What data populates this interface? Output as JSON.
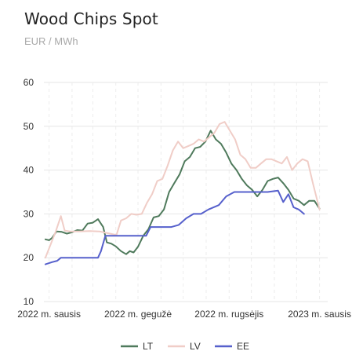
{
  "header": {
    "title": "Wood Chips Spot",
    "unit": "EUR / MWh"
  },
  "chart_data": {
    "type": "line",
    "title": "Wood Chips Spot",
    "ylabel": "EUR / MWh",
    "ylim": [
      10,
      60
    ],
    "yticks": [
      10,
      20,
      30,
      40,
      50,
      60
    ],
    "xlim": [
      "2021-12-25",
      "2023-01-12"
    ],
    "xticks": [
      {
        "date": "2022-01-01",
        "label": "2022 m. sausis"
      },
      {
        "date": "2022-05-01",
        "label": "2022 m. gegužė"
      },
      {
        "date": "2022-09-01",
        "label": "2022 m. rugsėjis"
      },
      {
        "date": "2023-01-01",
        "label": "2023 m. sausis"
      }
    ],
    "grid": true,
    "legend": "bottom",
    "series": [
      {
        "name": "LT",
        "color": "#4f7a5c",
        "points": [
          [
            "2021-12-27",
            24.2
          ],
          [
            "2022-01-01",
            24.0
          ],
          [
            "2022-01-05",
            24.5
          ],
          [
            "2022-01-11",
            26.0
          ],
          [
            "2022-01-18",
            25.9
          ],
          [
            "2022-01-25",
            25.5
          ],
          [
            "2022-02-01",
            25.8
          ],
          [
            "2022-02-08",
            26.3
          ],
          [
            "2022-02-15",
            26.2
          ],
          [
            "2022-02-22",
            27.8
          ],
          [
            "2022-03-01",
            28.0
          ],
          [
            "2022-03-08",
            28.8
          ],
          [
            "2022-03-15",
            27.0
          ],
          [
            "2022-03-20",
            23.5
          ],
          [
            "2022-03-26",
            23.2
          ],
          [
            "2022-04-01",
            22.6
          ],
          [
            "2022-04-08",
            21.5
          ],
          [
            "2022-04-15",
            20.8
          ],
          [
            "2022-04-20",
            21.5
          ],
          [
            "2022-04-25",
            21.2
          ],
          [
            "2022-05-01",
            22.5
          ],
          [
            "2022-05-08",
            25.0
          ],
          [
            "2022-05-15",
            26.5
          ],
          [
            "2022-05-22",
            29.2
          ],
          [
            "2022-05-29",
            29.5
          ],
          [
            "2022-06-05",
            31.0
          ],
          [
            "2022-06-12",
            35.0
          ],
          [
            "2022-06-19",
            37.0
          ],
          [
            "2022-06-26",
            39.0
          ],
          [
            "2022-07-03",
            42.0
          ],
          [
            "2022-07-10",
            43.0
          ],
          [
            "2022-07-17",
            45.0
          ],
          [
            "2022-07-24",
            45.3
          ],
          [
            "2022-07-31",
            46.5
          ],
          [
            "2022-08-07",
            49.0
          ],
          [
            "2022-08-14",
            47.0
          ],
          [
            "2022-08-21",
            46.0
          ],
          [
            "2022-08-28",
            44.0
          ],
          [
            "2022-09-04",
            41.5
          ],
          [
            "2022-09-11",
            40.0
          ],
          [
            "2022-09-18",
            38.0
          ],
          [
            "2022-09-25",
            36.5
          ],
          [
            "2022-10-02",
            35.5
          ],
          [
            "2022-10-09",
            34.0
          ],
          [
            "2022-10-16",
            35.5
          ],
          [
            "2022-10-23",
            37.5
          ],
          [
            "2022-10-30",
            38.0
          ],
          [
            "2022-11-06",
            38.3
          ],
          [
            "2022-11-13",
            37.0
          ],
          [
            "2022-11-20",
            35.5
          ],
          [
            "2022-11-27",
            33.5
          ],
          [
            "2022-12-04",
            33.0
          ],
          [
            "2022-12-11",
            32.0
          ],
          [
            "2022-12-18",
            33.0
          ],
          [
            "2022-12-25",
            33.0
          ],
          [
            "2023-01-01",
            31.2
          ]
        ]
      },
      {
        "name": "LV",
        "color": "#f0cdc7",
        "points": [
          [
            "2021-12-27",
            20.0
          ],
          [
            "2022-01-03",
            23.0
          ],
          [
            "2022-01-10",
            26.0
          ],
          [
            "2022-01-17",
            29.5
          ],
          [
            "2022-01-22",
            26.2
          ],
          [
            "2022-01-29",
            26.0
          ],
          [
            "2022-02-10",
            26.0
          ],
          [
            "2022-02-25",
            26.1
          ],
          [
            "2022-03-10",
            26.0
          ],
          [
            "2022-03-24",
            25.5
          ],
          [
            "2022-04-02",
            25.2
          ],
          [
            "2022-04-08",
            28.5
          ],
          [
            "2022-04-15",
            29.0
          ],
          [
            "2022-04-22",
            30.0
          ],
          [
            "2022-04-29",
            29.8
          ],
          [
            "2022-05-06",
            30.0
          ],
          [
            "2022-05-13",
            32.5
          ],
          [
            "2022-05-20",
            34.5
          ],
          [
            "2022-05-27",
            37.5
          ],
          [
            "2022-06-03",
            38.0
          ],
          [
            "2022-06-10",
            41.0
          ],
          [
            "2022-06-17",
            44.5
          ],
          [
            "2022-06-24",
            46.5
          ],
          [
            "2022-07-01",
            45.0
          ],
          [
            "2022-07-08",
            45.5
          ],
          [
            "2022-07-15",
            46.0
          ],
          [
            "2022-07-22",
            47.0
          ],
          [
            "2022-07-29",
            46.5
          ],
          [
            "2022-08-05",
            47.5
          ],
          [
            "2022-08-12",
            48.5
          ],
          [
            "2022-08-19",
            50.5
          ],
          [
            "2022-08-26",
            51.0
          ],
          [
            "2022-09-02",
            49.0
          ],
          [
            "2022-09-09",
            47.0
          ],
          [
            "2022-09-16",
            43.5
          ],
          [
            "2022-09-23",
            42.5
          ],
          [
            "2022-09-30",
            40.5
          ],
          [
            "2022-10-07",
            40.5
          ],
          [
            "2022-10-14",
            41.5
          ],
          [
            "2022-10-21",
            42.5
          ],
          [
            "2022-10-28",
            42.5
          ],
          [
            "2022-11-04",
            42.0
          ],
          [
            "2022-11-11",
            41.5
          ],
          [
            "2022-11-18",
            43.0
          ],
          [
            "2022-11-25",
            40.0
          ],
          [
            "2022-12-02",
            41.5
          ],
          [
            "2022-12-09",
            42.5
          ],
          [
            "2022-12-16",
            42.0
          ],
          [
            "2022-12-23",
            37.0
          ],
          [
            "2023-01-01",
            31.0
          ]
        ]
      },
      {
        "name": "EE",
        "color": "#5660cc",
        "points": [
          [
            "2021-12-27",
            18.5
          ],
          [
            "2022-01-05",
            19.0
          ],
          [
            "2022-01-12",
            19.3
          ],
          [
            "2022-01-17",
            20.0
          ],
          [
            "2022-02-01",
            20.0
          ],
          [
            "2022-02-15",
            20.0
          ],
          [
            "2022-03-01",
            20.0
          ],
          [
            "2022-03-08",
            20.0
          ],
          [
            "2022-03-12",
            21.5
          ],
          [
            "2022-03-18",
            25.0
          ],
          [
            "2022-03-25",
            25.0
          ],
          [
            "2022-04-01",
            25.0
          ],
          [
            "2022-04-15",
            25.0
          ],
          [
            "2022-05-01",
            25.0
          ],
          [
            "2022-05-12",
            25.0
          ],
          [
            "2022-05-18",
            27.0
          ],
          [
            "2022-06-01",
            27.0
          ],
          [
            "2022-06-15",
            27.0
          ],
          [
            "2022-06-25",
            27.5
          ],
          [
            "2022-07-05",
            29.0
          ],
          [
            "2022-07-15",
            30.0
          ],
          [
            "2022-07-25",
            30.0
          ],
          [
            "2022-08-04",
            31.0
          ],
          [
            "2022-08-18",
            32.0
          ],
          [
            "2022-08-28",
            34.0
          ],
          [
            "2022-09-08",
            35.0
          ],
          [
            "2022-09-25",
            35.0
          ],
          [
            "2022-10-08",
            35.0
          ],
          [
            "2022-10-23",
            35.0
          ],
          [
            "2022-11-06",
            35.3
          ],
          [
            "2022-11-13",
            32.7
          ],
          [
            "2022-11-20",
            34.5
          ],
          [
            "2022-11-27",
            31.5
          ],
          [
            "2022-12-04",
            31.0
          ],
          [
            "2022-12-11",
            30.0
          ]
        ]
      }
    ]
  }
}
